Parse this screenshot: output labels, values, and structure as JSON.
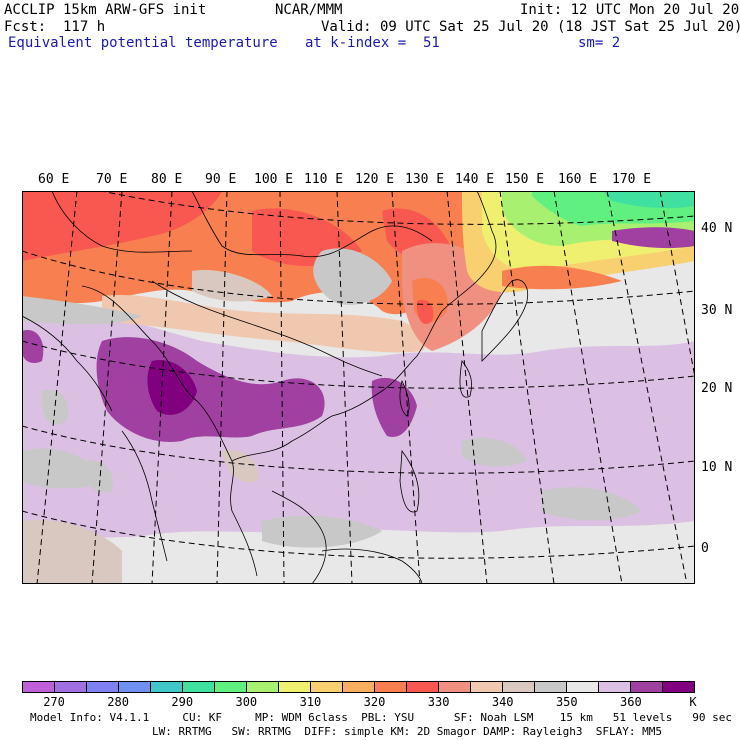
{
  "header": {
    "model": "ACCLIP 15km ARW-GFS init",
    "center": "NCAR/MMM",
    "init": "Init: 12 UTC Mon 20 Jul 20",
    "fcst": "Fcst:  117 h",
    "valid": "Valid: 09 UTC Sat 25 Jul 20 (18 JST Sat 25 Jul 20)",
    "field": "Equivalent potential temperature",
    "level": "at k-index =  51",
    "smooth": "sm= 2"
  },
  "map": {
    "lon_labels": [
      "60 E",
      "70 E",
      "80 E",
      "90 E",
      "100 E",
      "110 E",
      "120 E",
      "130 E",
      "140 E",
      "150 E",
      "160 E",
      "170 E"
    ],
    "lat_labels": [
      "40 N",
      "30 N",
      "20 N",
      "10 N",
      "0"
    ]
  },
  "colorbar": {
    "colors": [
      "#c060d8",
      "#a070e0",
      "#8080f0",
      "#7090f0",
      "#40c8c8",
      "#40e0a0",
      "#60f080",
      "#a8f070",
      "#f0f070",
      "#f8d070",
      "#f8b060",
      "#f88050",
      "#f85850",
      "#f09080",
      "#f0c8b0",
      "#d8c8c0",
      "#c8c8c8",
      "#e8e8e8",
      "#dcc0e4",
      "#a040a0",
      "#800080"
    ],
    "ticks": [
      "270",
      "280",
      "290",
      "300",
      "310",
      "320",
      "330",
      "340",
      "350",
      "360"
    ],
    "unit": "K"
  },
  "footer": {
    "line1": "Model Info: V4.1.1     CU: KF     MP: WDM 6class  PBL: YSU      SF: Noah LSM    15 km   51 levels   90 sec",
    "line2": "LW: RRTMG   SW: RRTMG  DIFF: simple KM: 2D Smagor DAMP: Rayleigh3  SFLAY: MM5"
  }
}
